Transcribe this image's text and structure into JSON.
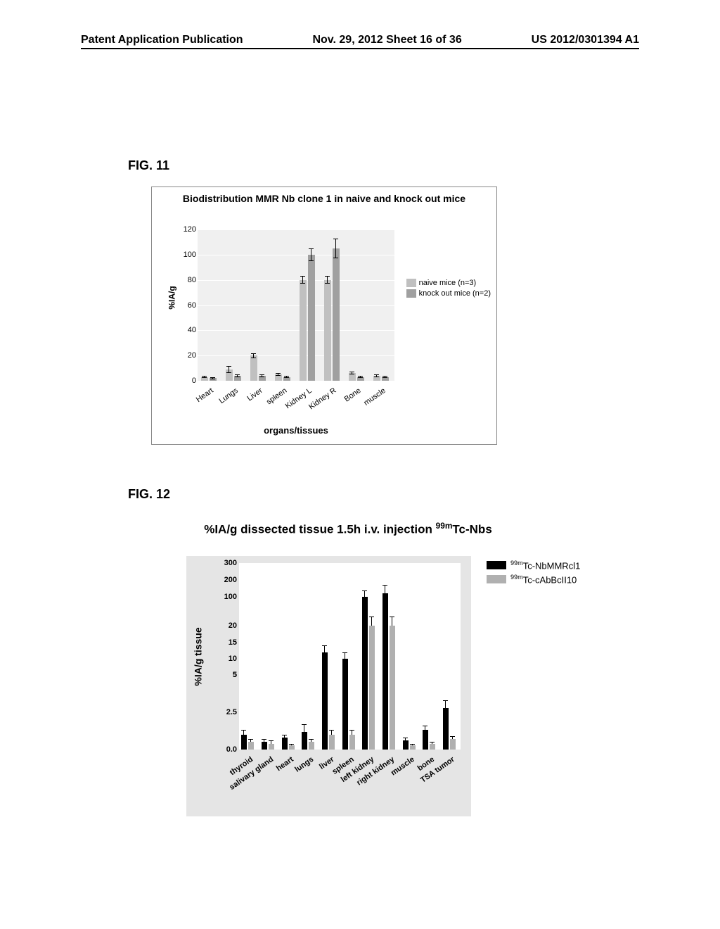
{
  "header": {
    "left": "Patent Application Publication",
    "center": "Nov. 29, 2012  Sheet 16 of 36",
    "right": "US 2012/0301394 A1"
  },
  "fig11": {
    "label": "FIG. 11",
    "title": "Biodistribution MMR Nb clone 1 in naive and knock out mice",
    "ylabel": "%IA/g",
    "xlabel": "organs/tissues",
    "ylim": [
      0,
      120
    ],
    "ytick_step": 20,
    "yticks": [
      0,
      20,
      40,
      60,
      80,
      100,
      120
    ],
    "categories": [
      "Heart",
      "Lungs",
      "Liver",
      "spleen",
      "Kidney L",
      "Kidney R",
      "Bone",
      "muscle"
    ],
    "series": [
      {
        "name": "naive mice (n=3)",
        "color": "#c0c0c0",
        "values": [
          3,
          9,
          20,
          5,
          80,
          80,
          6,
          4
        ],
        "err": [
          1,
          3,
          2,
          1,
          3,
          3,
          1,
          1
        ]
      },
      {
        "name": "knock out mice (n=2)",
        "color": "#a0a0a0",
        "values": [
          2,
          4,
          4,
          3,
          100,
          105,
          3,
          3
        ],
        "err": [
          1,
          1,
          1,
          1,
          5,
          8,
          1,
          1
        ]
      }
    ],
    "background_color": "#f0f0f0",
    "grid_color": "#ffffff"
  },
  "fig12": {
    "label": "FIG. 12",
    "title_prefix": "%IA/g dissected tissue 1.5h i.v. injection ",
    "title_sup": "99m",
    "title_suffix": "Tc-Nbs",
    "ylabel": "%IA/g tissue",
    "categories": [
      "thyroid",
      "salivary gland",
      "heart",
      "lungs",
      "liver",
      "spleen",
      "left kidney",
      "right kidney",
      "muscle",
      "bone",
      "TSA tumor"
    ],
    "ybreaks": [
      5.0,
      25
    ],
    "yticks_seg1": [
      0.0,
      2.5,
      5.0
    ],
    "yticks_seg2": [
      5,
      10,
      15,
      20
    ],
    "yticks_seg3": [
      100,
      200,
      300
    ],
    "series": [
      {
        "name_sup": "99m",
        "name_suffix": "Tc-NbMMRcl1",
        "color": "#000000",
        "values": [
          1.0,
          0.5,
          0.8,
          1.2,
          12,
          10,
          100,
          120,
          0.6,
          1.3,
          2.8
        ],
        "err": [
          0.3,
          0.2,
          0.2,
          0.5,
          2,
          2,
          40,
          50,
          0.2,
          0.3,
          0.5
        ]
      },
      {
        "name_sup": "99m",
        "name_suffix": "Tc-cAbBcII10",
        "color": "#b0b0b0",
        "values": [
          0.5,
          0.4,
          0.3,
          0.5,
          1.0,
          1.0,
          20,
          20,
          0.3,
          0.4,
          0.7
        ],
        "err": [
          0.2,
          0.2,
          0.1,
          0.2,
          0.3,
          0.3,
          3,
          3,
          0.1,
          0.1,
          0.2
        ]
      }
    ],
    "background_color": "#e5e5e5",
    "plot_bg": "#ffffff"
  }
}
